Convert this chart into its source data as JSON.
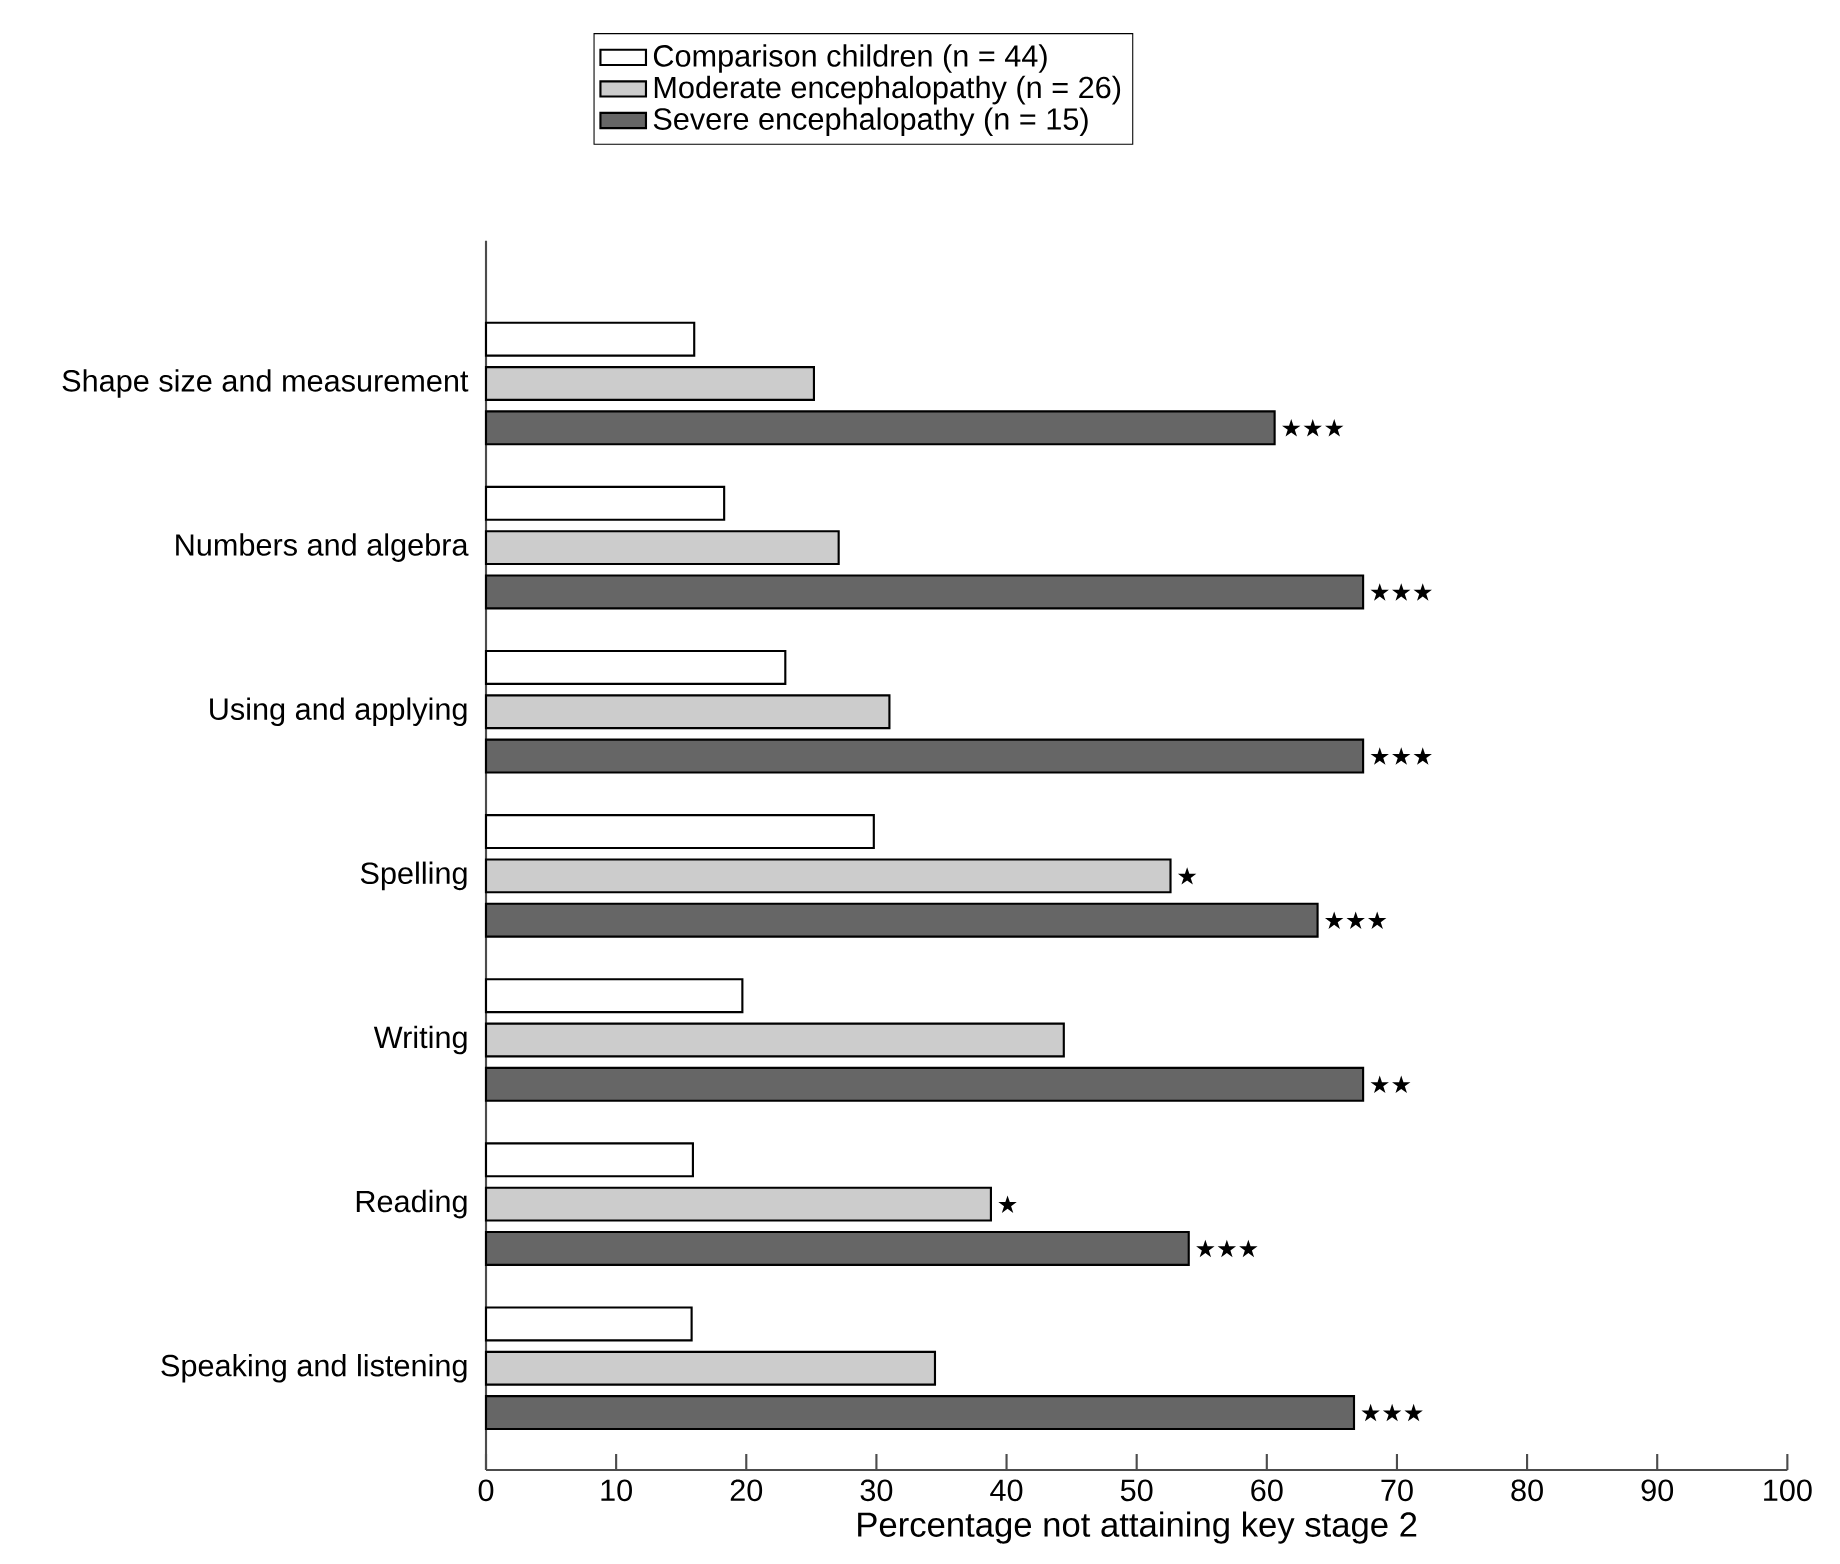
{
  "chart_data": {
    "type": "bar",
    "orientation": "horizontal",
    "xlabel": "Percentage not attaining key stage 2",
    "categories": [
      "Shape size and measurement",
      "Numbers and algebra",
      "Using and applying",
      "Spelling",
      "Writing",
      "Reading",
      "Speaking and listening"
    ],
    "series": [
      {
        "name": "Comparison children          (n = 44)",
        "color": "#ffffff",
        "values": [
          16.0,
          18.3,
          23.0,
          29.8,
          19.7,
          15.9,
          15.8
        ]
      },
      {
        "name": "Moderate encephalopathy  (n = 26)",
        "color": "#cccccc",
        "values": [
          25.2,
          27.1,
          31.0,
          52.6,
          44.4,
          38.8,
          34.5
        ],
        "value_labels": [
          null,
          null,
          null,
          "★",
          null,
          "★",
          null
        ]
      },
      {
        "name": "Severe encephalopathy      (n = 15)",
        "color": "#666666",
        "values": [
          60.6,
          67.4,
          67.4,
          63.9,
          67.4,
          54.0,
          66.7
        ],
        "value_labels": [
          "★★★",
          "★★★",
          "★★★",
          "★★★",
          "★★",
          "★★★",
          "★★★"
        ]
      }
    ],
    "xlim": [
      0,
      100
    ],
    "xticks": [
      0,
      10,
      20,
      30,
      40,
      50,
      60,
      70,
      80,
      90,
      100
    ],
    "legend": "top"
  }
}
